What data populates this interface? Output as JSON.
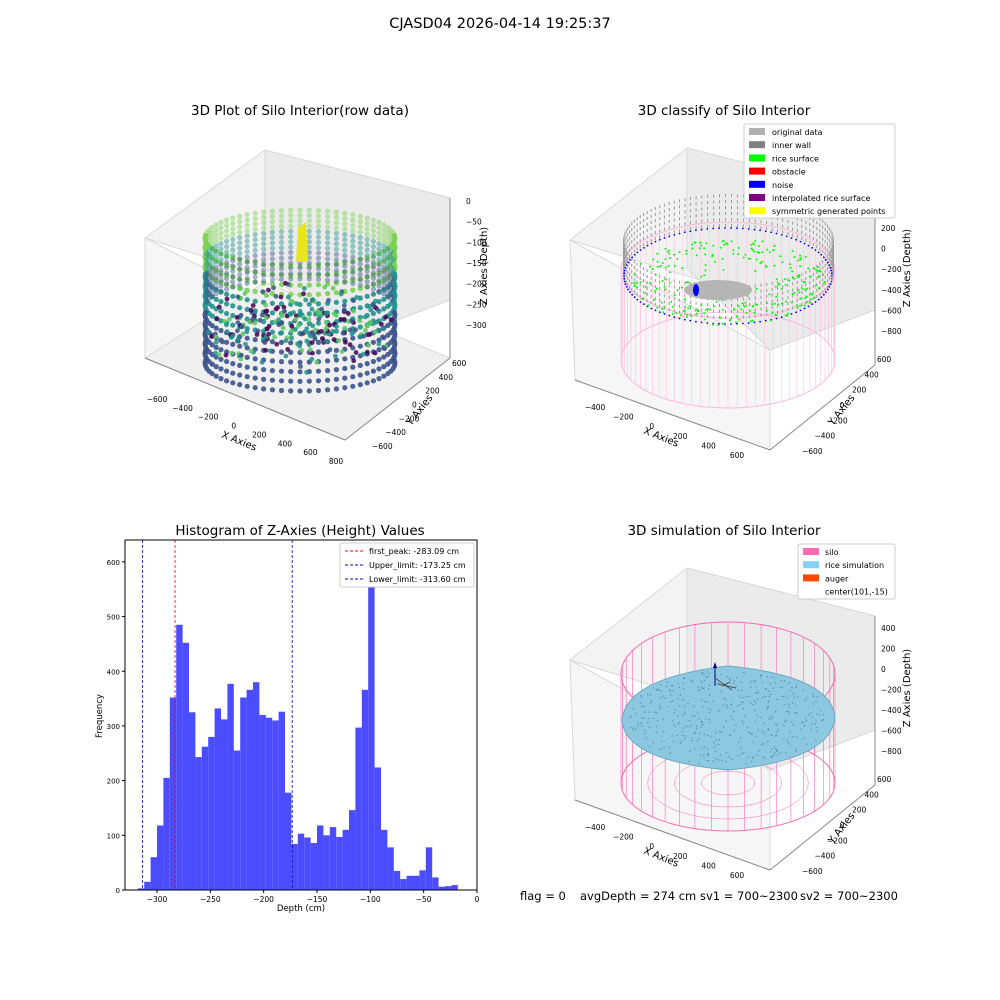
{
  "suptitle": "CJASD04 2026-04-14 19:25:37",
  "footer": {
    "flag": "flag = 0",
    "avg_depth": "avgDepth = 274 cm",
    "sv1": "sv1 = 700~2300",
    "sv2": "sv2 = 700~2300"
  },
  "colors": {
    "hist_bar": "#4c4cff",
    "first_peak": "#ff0000",
    "limits": "#0000cc",
    "silo": "#ff69b4",
    "rice": "#87cefa",
    "auger": "#ff4500",
    "rice_surface": "#00ff00",
    "noise": "#0000ff",
    "original": "#b0b0b0"
  },
  "chart_data": [
    {
      "type": "scatter",
      "title": "3D Plot of Silo Interior(row data)",
      "xlabel": "X Axies",
      "ylabel": "Y Axies",
      "zlabel": "Z Axies (Depth)",
      "x_ticks": [
        "−600",
        "−400",
        "−200",
        "0",
        "200",
        "400",
        "600",
        "800"
      ],
      "y_ticks": [
        "600",
        "400",
        "200",
        "0",
        "−200",
        "−400",
        "−600"
      ],
      "z_ticks": [
        "0",
        "−50",
        "−100",
        "−150",
        "−200",
        "−250",
        "−300"
      ],
      "zlim": [
        -320,
        0
      ]
    },
    {
      "type": "scatter",
      "title": "3D classify of Silo Interior",
      "xlabel": "X Axies",
      "ylabel": "Y Axies",
      "zlabel": "Z Axies (Depth)",
      "x_ticks": [
        "−400",
        "−200",
        "0",
        "200",
        "400",
        "600"
      ],
      "y_ticks": [
        "600",
        "400",
        "200",
        "0",
        "−200",
        "−400",
        "−600"
      ],
      "z_ticks": [
        "200",
        "0",
        "−200",
        "−400",
        "−600",
        "−800"
      ],
      "legend": [
        {
          "label": "original data",
          "color": "#b0b0b0"
        },
        {
          "label": "inner wall",
          "color": "#808080"
        },
        {
          "label": "rice surface",
          "color": "#00ff00"
        },
        {
          "label": "obstacle",
          "color": "#ff0000"
        },
        {
          "label": "noise",
          "color": "#0000ff"
        },
        {
          "label": "interpolated rice surface",
          "color": "#800080"
        },
        {
          "label": "symmetric generated points",
          "color": "#ffff00"
        }
      ]
    },
    {
      "type": "bar",
      "title": "Histogram of Z-Axies (Height) Values",
      "xlabel": "Depth (cm)",
      "ylabel": "Frequency",
      "xlim": [
        -330,
        0
      ],
      "ylim": [
        0,
        640
      ],
      "x_ticks": [
        -300,
        -250,
        -200,
        -150,
        -100,
        -50,
        0
      ],
      "x_tick_labels": [
        "−300",
        "−250",
        "−200",
        "−150",
        "−100",
        "−50",
        "0"
      ],
      "y_ticks": [
        0,
        100,
        200,
        300,
        400,
        500,
        600
      ],
      "bin_width": 6,
      "bin_start": -318,
      "values": [
        3,
        15,
        60,
        118,
        205,
        352,
        485,
        452,
        325,
        243,
        262,
        280,
        332,
        312,
        377,
        255,
        352,
        366,
        380,
        320,
        315,
        310,
        326,
        178,
        84,
        103,
        96,
        86,
        118,
        100,
        115,
        97,
        110,
        146,
        297,
        366,
        625,
        224,
        110,
        78,
        35,
        20,
        26,
        26,
        36,
        78,
        23,
        6,
        7,
        9
      ],
      "lines": [
        {
          "label": "first_peak: -283.09 cm",
          "x": -283.09,
          "color": "#ff0000"
        },
        {
          "label": "Upper_limit: -173.25 cm",
          "x": -173.25,
          "color": "#0000cc"
        },
        {
          "label": "Lower_limit: -313.60 cm",
          "x": -313.6,
          "color": "#0000cc"
        }
      ]
    },
    {
      "type": "scatter",
      "title": "3D simulation of Silo Interior",
      "xlabel": "X Axies",
      "ylabel": "Y Axies",
      "zlabel": "Z Axies (Depth)",
      "x_ticks": [
        "−400",
        "−200",
        "0",
        "200",
        "400",
        "600"
      ],
      "y_ticks": [
        "600",
        "400",
        "200",
        "0",
        "−200",
        "−400",
        "−600"
      ],
      "z_ticks": [
        "400",
        "200",
        "0",
        "−200",
        "−400",
        "−600",
        "−800"
      ],
      "legend": [
        {
          "label": "silo",
          "color": "#ff69b4"
        },
        {
          "label": "rice simulation",
          "color": "#87cefa"
        },
        {
          "label": "auger",
          "color": "#ff4500"
        },
        {
          "label": "center(101,-15)",
          "color": ""
        }
      ]
    }
  ]
}
